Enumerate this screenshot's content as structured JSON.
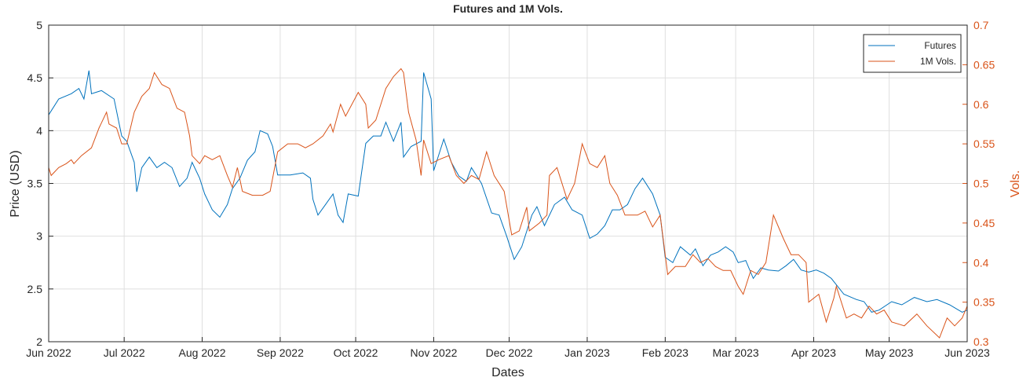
{
  "chart_data": {
    "type": "line",
    "title": "Futures and 1M Vols.",
    "xlabel": "Dates",
    "ylabel": "Price (USD)",
    "y2label": "Vols.",
    "xlim": [
      0,
      365
    ],
    "xticks": [
      {
        "value": 0,
        "label": "Jun 2022"
      },
      {
        "value": 30,
        "label": "Jul 2022"
      },
      {
        "value": 61,
        "label": "Aug 2022"
      },
      {
        "value": 92,
        "label": "Sep 2022"
      },
      {
        "value": 122,
        "label": "Oct 2022"
      },
      {
        "value": 153,
        "label": "Nov 2022"
      },
      {
        "value": 183,
        "label": "Dec 2022"
      },
      {
        "value": 214,
        "label": "Jan 2023"
      },
      {
        "value": 245,
        "label": "Feb 2023"
      },
      {
        "value": 273,
        "label": "Mar 2023"
      },
      {
        "value": 304,
        "label": "Apr 2023"
      },
      {
        "value": 334,
        "label": "May 2023"
      },
      {
        "value": 365,
        "label": "Jun 2023"
      }
    ],
    "ylim": [
      2,
      5
    ],
    "yticks": [
      2,
      2.5,
      3,
      3.5,
      4,
      4.5,
      5
    ],
    "y2lim": [
      0.3,
      0.7
    ],
    "y2ticks": [
      0.3,
      0.35,
      0.4,
      0.45,
      0.5,
      0.55,
      0.6,
      0.65,
      0.7
    ],
    "y2color": "#D95319",
    "grid": true,
    "legend": "upper right",
    "series": [
      {
        "name": "Futures",
        "color": "#0072BD",
        "axis": "y",
        "x": [
          0,
          4,
          9,
          12,
          14,
          16,
          17,
          21,
          26,
          29,
          31,
          34,
          35,
          37,
          40,
          43,
          46,
          49,
          52,
          55,
          57,
          60,
          62,
          65,
          68,
          71,
          73,
          76,
          79,
          82,
          84,
          87,
          89,
          91,
          96,
          101,
          104,
          105,
          107,
          110,
          113,
          115,
          117,
          119,
          123,
          126,
          129,
          132,
          134,
          137,
          140,
          141,
          144,
          148,
          149,
          152,
          153,
          157,
          160,
          163,
          166,
          168,
          172,
          176,
          179,
          182,
          185,
          188,
          192,
          194,
          197,
          201,
          205,
          208,
          212,
          215,
          218,
          221,
          224,
          227,
          230,
          233,
          236,
          240,
          243,
          245,
          248,
          251,
          255,
          257,
          260,
          263,
          266,
          269,
          272,
          274,
          277,
          280,
          283,
          286,
          290,
          293,
          296,
          299,
          302,
          305,
          308,
          311,
          316,
          321,
          324,
          327,
          330,
          335,
          339,
          344,
          349,
          353,
          358,
          363,
          365
        ],
        "values": [
          4.15,
          4.3,
          4.35,
          4.4,
          4.3,
          4.57,
          4.35,
          4.38,
          4.3,
          3.95,
          3.9,
          3.7,
          3.42,
          3.65,
          3.75,
          3.65,
          3.7,
          3.65,
          3.47,
          3.55,
          3.7,
          3.55,
          3.4,
          3.25,
          3.18,
          3.3,
          3.45,
          3.55,
          3.72,
          3.8,
          4.0,
          3.97,
          3.85,
          3.58,
          3.58,
          3.6,
          3.55,
          3.35,
          3.2,
          3.3,
          3.4,
          3.2,
          3.13,
          3.4,
          3.38,
          3.88,
          3.95,
          3.95,
          4.08,
          3.9,
          4.08,
          3.75,
          3.85,
          3.9,
          4.55,
          4.3,
          3.62,
          3.92,
          3.7,
          3.57,
          3.52,
          3.65,
          3.5,
          3.22,
          3.2,
          3.0,
          2.78,
          2.9,
          3.2,
          3.28,
          3.1,
          3.3,
          3.37,
          3.25,
          3.2,
          2.98,
          3.02,
          3.1,
          3.25,
          3.25,
          3.3,
          3.45,
          3.55,
          3.4,
          3.2,
          2.8,
          2.75,
          2.9,
          2.82,
          2.88,
          2.72,
          2.82,
          2.85,
          2.9,
          2.85,
          2.75,
          2.77,
          2.6,
          2.7,
          2.68,
          2.67,
          2.72,
          2.78,
          2.68,
          2.66,
          2.68,
          2.65,
          2.6,
          2.45,
          2.4,
          2.38,
          2.28,
          2.3,
          2.38,
          2.35,
          2.42,
          2.38,
          2.4,
          2.35,
          2.28,
          2.3
        ]
      },
      {
        "name": "1M Vols.",
        "color": "#D95319",
        "axis": "y2",
        "x": [
          0,
          1,
          4,
          7,
          9,
          10,
          13,
          17,
          20,
          23,
          24,
          27,
          29,
          31,
          34,
          37,
          40,
          42,
          45,
          48,
          51,
          54,
          56,
          57,
          60,
          62,
          65,
          68,
          71,
          73,
          75,
          77,
          81,
          85,
          88,
          91,
          95,
          99,
          102,
          105,
          109,
          112,
          113,
          116,
          118,
          123,
          126,
          127,
          130,
          134,
          137,
          140,
          141,
          143,
          146,
          148,
          149,
          152,
          155,
          159,
          162,
          165,
          168,
          171,
          174,
          177,
          181,
          184,
          187,
          190,
          191,
          195,
          198,
          199,
          202,
          206,
          209,
          212,
          215,
          218,
          221,
          223,
          226,
          229,
          234,
          237,
          240,
          243,
          246,
          249,
          253,
          256,
          259,
          262,
          265,
          268,
          271,
          274,
          276,
          279,
          282,
          285,
          288,
          292,
          295,
          298,
          301,
          302,
          306,
          309,
          312,
          313,
          317,
          320,
          323,
          326,
          329,
          332,
          335,
          340,
          345,
          349,
          354,
          357,
          360,
          363,
          365
        ],
        "values": [
          0.52,
          0.51,
          0.52,
          0.525,
          0.53,
          0.525,
          0.535,
          0.545,
          0.57,
          0.59,
          0.575,
          0.57,
          0.55,
          0.55,
          0.59,
          0.61,
          0.62,
          0.64,
          0.625,
          0.62,
          0.595,
          0.59,
          0.56,
          0.535,
          0.525,
          0.535,
          0.53,
          0.535,
          0.51,
          0.495,
          0.52,
          0.49,
          0.485,
          0.485,
          0.49,
          0.54,
          0.55,
          0.55,
          0.545,
          0.55,
          0.56,
          0.575,
          0.565,
          0.6,
          0.585,
          0.615,
          0.6,
          0.57,
          0.58,
          0.62,
          0.635,
          0.645,
          0.64,
          0.59,
          0.555,
          0.51,
          0.555,
          0.525,
          0.53,
          0.535,
          0.51,
          0.5,
          0.51,
          0.505,
          0.54,
          0.51,
          0.49,
          0.435,
          0.44,
          0.47,
          0.44,
          0.45,
          0.46,
          0.51,
          0.52,
          0.48,
          0.5,
          0.55,
          0.525,
          0.52,
          0.535,
          0.5,
          0.485,
          0.46,
          0.46,
          0.465,
          0.445,
          0.46,
          0.385,
          0.395,
          0.395,
          0.41,
          0.4,
          0.405,
          0.395,
          0.39,
          0.39,
          0.37,
          0.36,
          0.39,
          0.385,
          0.4,
          0.46,
          0.43,
          0.41,
          0.41,
          0.4,
          0.35,
          0.36,
          0.325,
          0.355,
          0.37,
          0.33,
          0.335,
          0.33,
          0.345,
          0.335,
          0.34,
          0.325,
          0.32,
          0.335,
          0.32,
          0.305,
          0.33,
          0.32,
          0.33,
          0.345
        ]
      }
    ]
  }
}
